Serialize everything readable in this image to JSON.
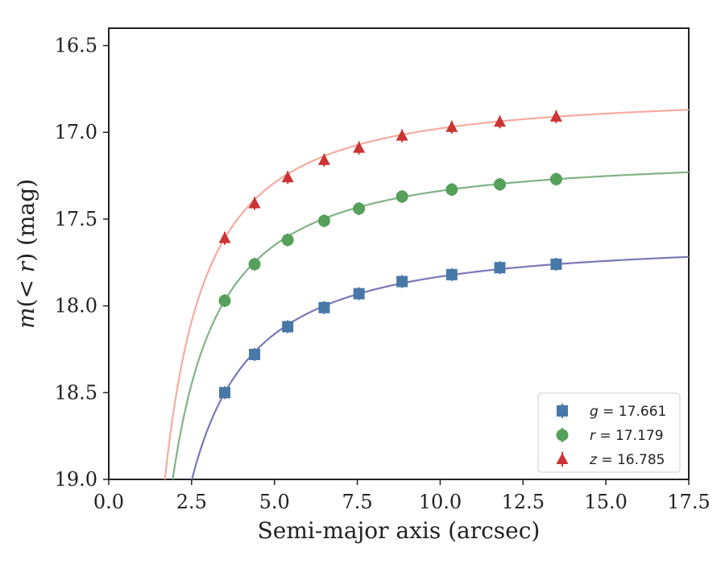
{
  "chart_data": {
    "type": "scatter",
    "title": "",
    "xlabel": "Semi-major axis (arcsec)",
    "ylabel": "m(< r) (mag)",
    "xlim": [
      0.0,
      17.5
    ],
    "ylim": [
      19.0,
      16.4
    ],
    "y_inverted": true,
    "grid": false,
    "legend_position": "bottom-right",
    "xticks": [
      "0.0",
      "2.5",
      "5.0",
      "7.5",
      "10.0",
      "12.5",
      "15.0",
      "17.5"
    ],
    "yticks": [
      "16.5",
      "17.0",
      "17.5",
      "18.0",
      "18.5",
      "19.0"
    ],
    "x": [
      3.5,
      4.4,
      5.4,
      6.5,
      7.55,
      8.85,
      10.35,
      11.8,
      13.5
    ],
    "series": [
      {
        "name": "g = 17.661",
        "band": "g",
        "value": "17.661",
        "marker": "square",
        "color": "#4878a8",
        "curve_color": "#7a78b8",
        "values": [
          18.5,
          18.28,
          18.12,
          18.01,
          17.93,
          17.86,
          17.82,
          17.78,
          17.76
        ]
      },
      {
        "name": "r = 17.179",
        "band": "r",
        "value": "17.179",
        "marker": "circle",
        "color": "#55a05a",
        "curve_color": "#82b386",
        "values": [
          17.97,
          17.76,
          17.62,
          17.51,
          17.44,
          17.37,
          17.33,
          17.3,
          17.27
        ]
      },
      {
        "name": "z = 16.785",
        "band": "z",
        "value": "16.785",
        "marker": "triangle",
        "color": "#cc3333",
        "curve_color": "#f5aba0",
        "values": [
          17.61,
          17.41,
          17.26,
          17.16,
          17.09,
          17.02,
          16.97,
          16.94,
          16.91
        ]
      }
    ]
  }
}
